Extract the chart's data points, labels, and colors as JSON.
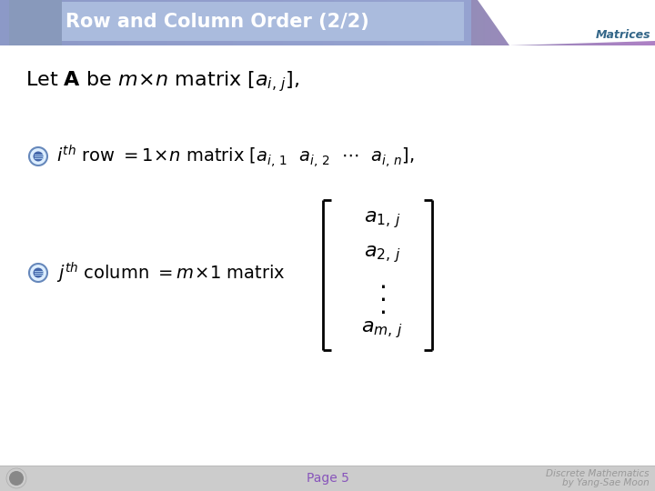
{
  "title": "Row and Column Order (2/2)",
  "subtitle": "Matrices",
  "bg_color": "#ffffff",
  "header_tab_color": "#99aacc",
  "header_right_gradient_left": "#8877aa",
  "header_right_gradient_right": "#6655aa",
  "header_text_color": "#ffffff",
  "subtitle_color": "#336688",
  "footer_bg": "#cccccc",
  "footer_text": "Page 5",
  "footer_text_color": "#8855bb",
  "footer_right_color": "#999999",
  "body_bg": "#ffffff"
}
